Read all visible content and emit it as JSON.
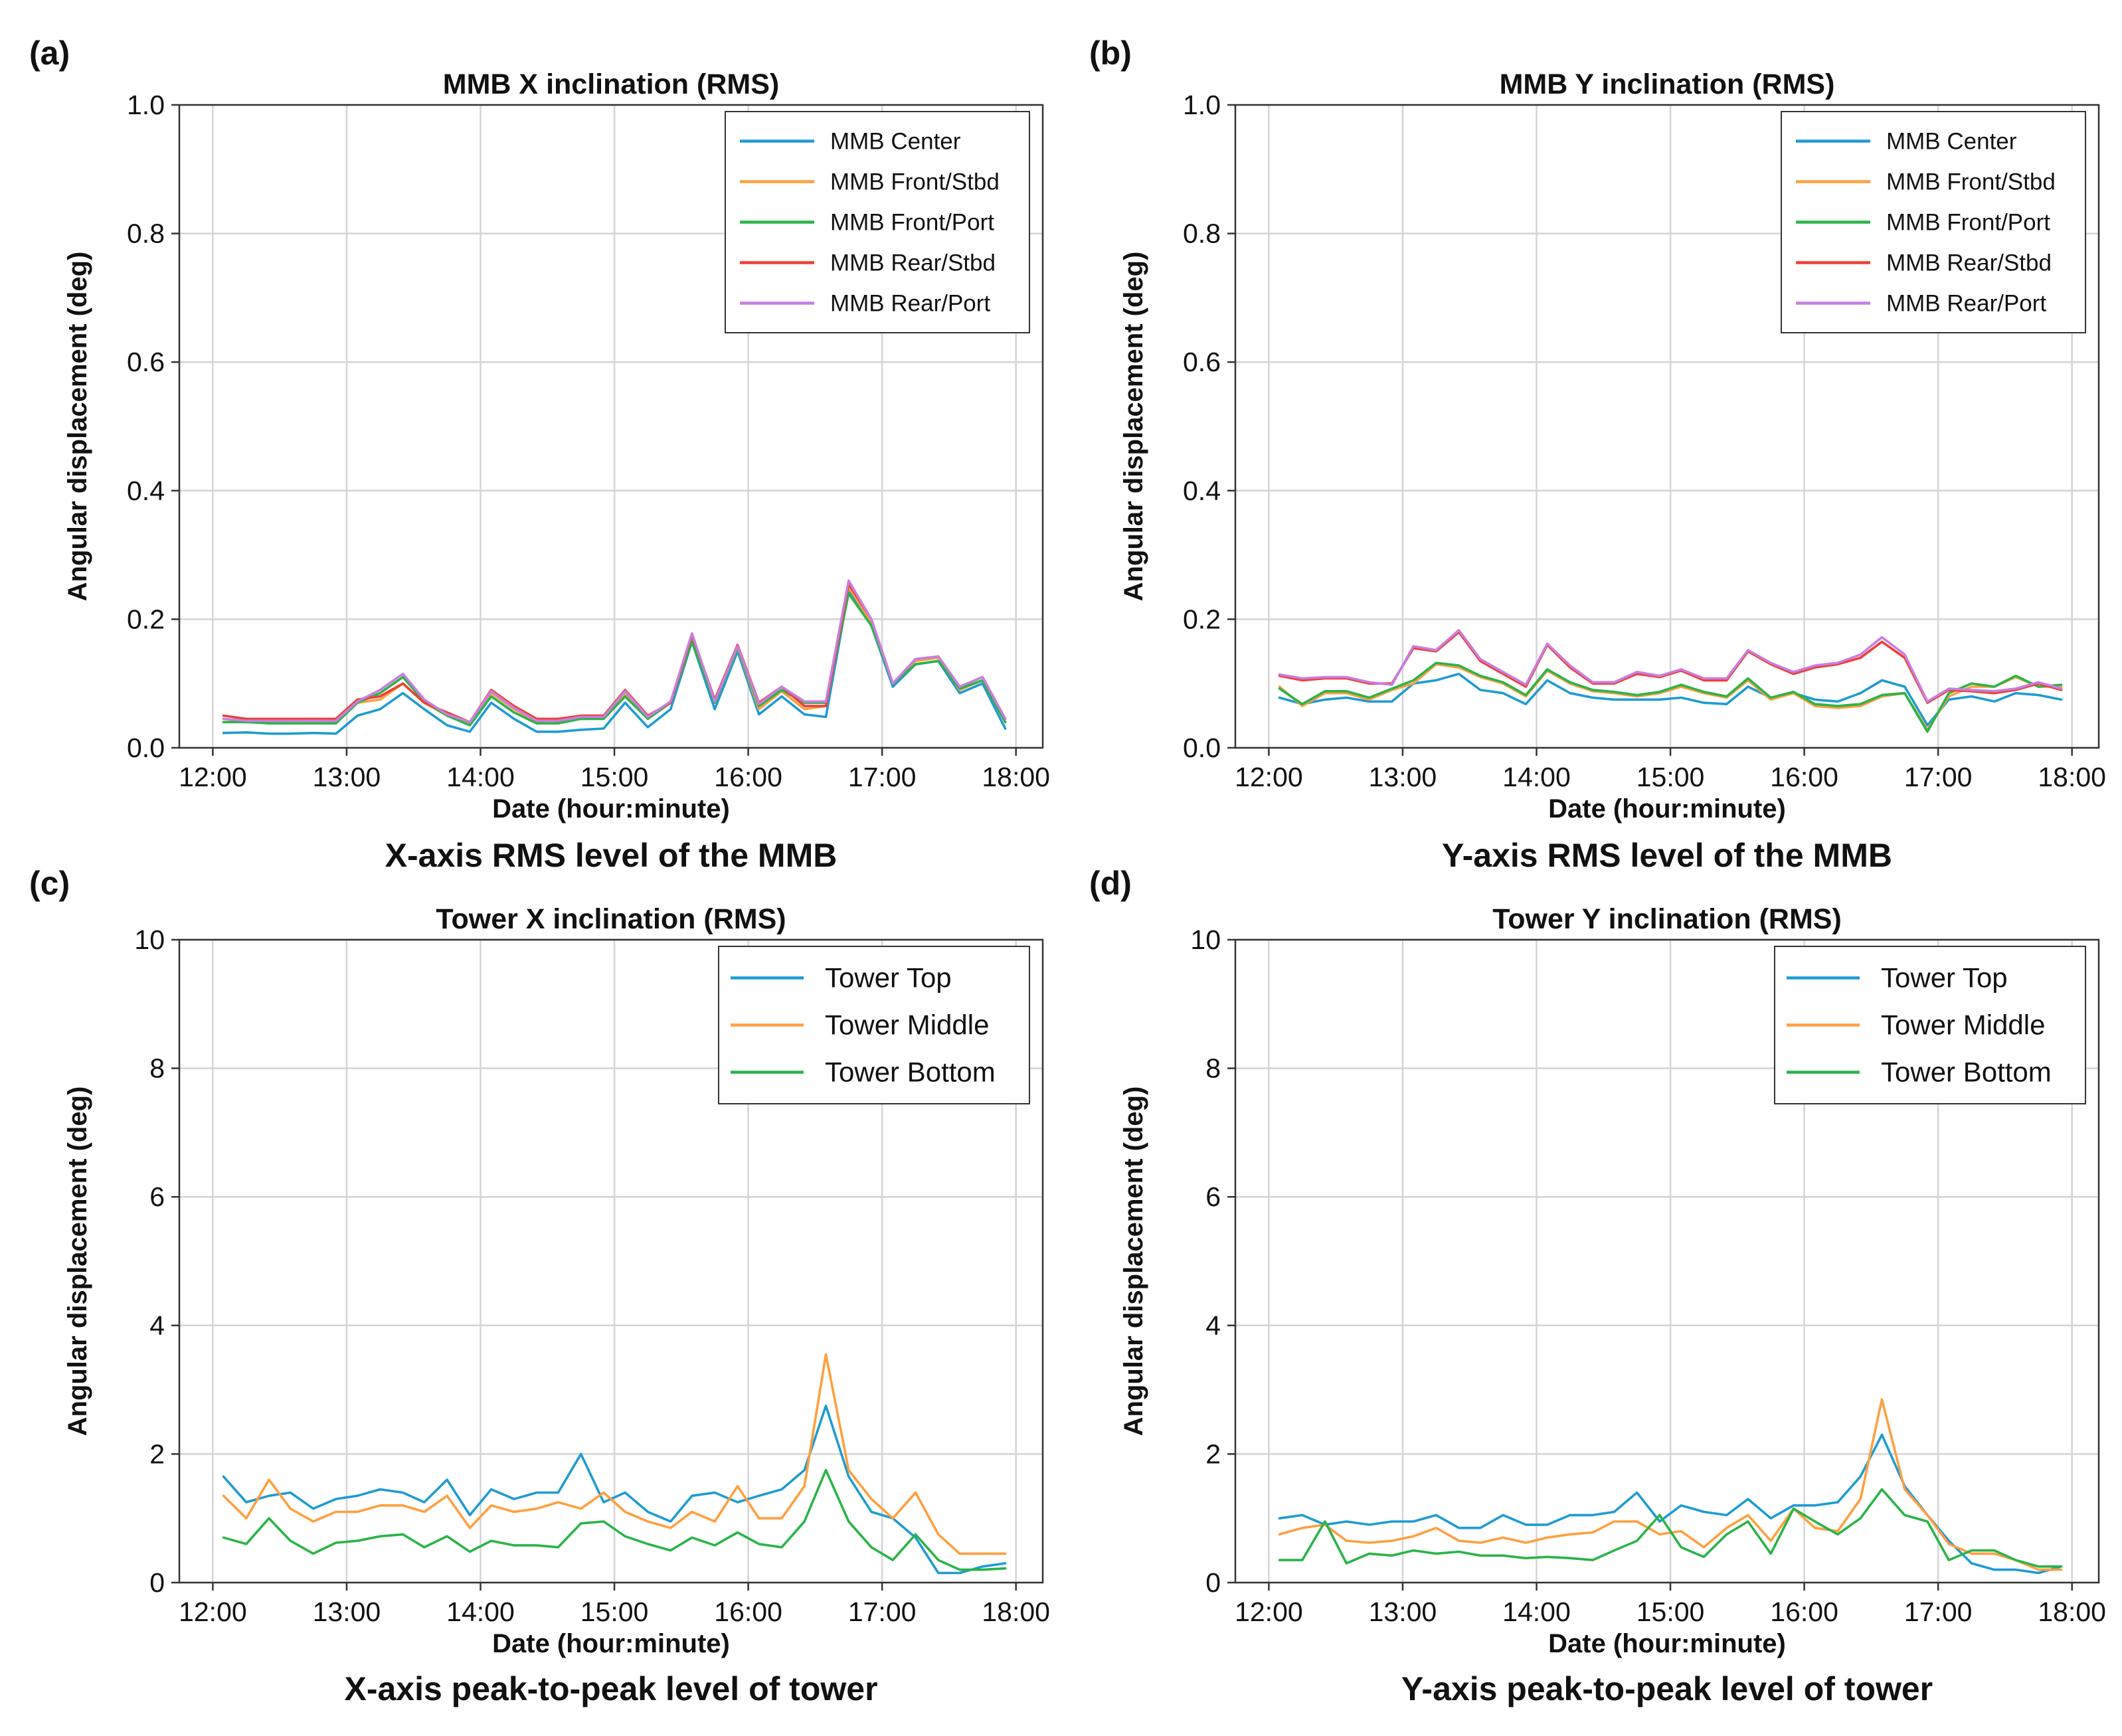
{
  "colors": {
    "blue": "#1f9bd1",
    "orange": "#ff9f40",
    "green": "#2cb34a",
    "red": "#ef3e36",
    "purple": "#c67fe0"
  },
  "chart_data": [
    {
      "id": "a",
      "panel_label": "(a)",
      "type": "line",
      "title": "MMB X inclination (RMS)",
      "caption": "X-axis RMS level of the MMB",
      "xlabel": "Date (hour:minute)",
      "ylabel": "Angular displacement (deg)",
      "xlim": [
        11.75,
        18.2
      ],
      "ylim": [
        0,
        1.0
      ],
      "x_ticks": [
        12,
        13,
        14,
        15,
        16,
        17,
        18
      ],
      "x_tick_labels": [
        "12:00",
        "13:00",
        "14:00",
        "15:00",
        "16:00",
        "17:00",
        "18:00"
      ],
      "y_ticks": [
        0,
        0.2,
        0.4,
        0.6,
        0.8,
        1.0
      ],
      "y_tick_labels": [
        "0.0",
        "0.2",
        "0.4",
        "0.6",
        "0.8",
        "1.0"
      ],
      "grid": true,
      "legend_position": "top-right",
      "x": [
        12.08,
        12.25,
        12.42,
        12.58,
        12.75,
        12.92,
        13.08,
        13.25,
        13.42,
        13.58,
        13.75,
        13.92,
        14.08,
        14.25,
        14.42,
        14.58,
        14.75,
        14.92,
        15.08,
        15.25,
        15.42,
        15.58,
        15.75,
        15.92,
        16.08,
        16.25,
        16.42,
        16.58,
        16.75,
        16.92,
        17.08,
        17.25,
        17.42,
        17.58,
        17.75,
        17.92
      ],
      "series": [
        {
          "name": "MMB Center",
          "color_key": "blue",
          "values": [
            0.023,
            0.024,
            0.022,
            0.022,
            0.023,
            0.022,
            0.05,
            0.06,
            0.085,
            0.06,
            0.035,
            0.025,
            0.07,
            0.045,
            0.025,
            0.025,
            0.028,
            0.03,
            0.07,
            0.032,
            0.06,
            0.165,
            0.06,
            0.15,
            0.052,
            0.08,
            0.052,
            0.048,
            0.245,
            0.19,
            0.095,
            0.13,
            0.135,
            0.085,
            0.1,
            0.03
          ]
        },
        {
          "name": "MMB Front/Stbd",
          "color_key": "orange",
          "values": [
            0.045,
            0.04,
            0.04,
            0.04,
            0.04,
            0.04,
            0.07,
            0.075,
            0.1,
            0.07,
            0.05,
            0.038,
            0.085,
            0.06,
            0.04,
            0.04,
            0.045,
            0.045,
            0.085,
            0.045,
            0.07,
            0.17,
            0.07,
            0.155,
            0.06,
            0.088,
            0.06,
            0.065,
            0.25,
            0.195,
            0.1,
            0.135,
            0.14,
            0.09,
            0.105,
            0.04
          ]
        },
        {
          "name": "MMB Front/Port",
          "color_key": "green",
          "values": [
            0.04,
            0.04,
            0.038,
            0.038,
            0.038,
            0.038,
            0.07,
            0.085,
            0.11,
            0.072,
            0.05,
            0.035,
            0.08,
            0.055,
            0.038,
            0.038,
            0.045,
            0.045,
            0.08,
            0.045,
            0.07,
            0.165,
            0.07,
            0.155,
            0.065,
            0.09,
            0.07,
            0.07,
            0.24,
            0.19,
            0.1,
            0.13,
            0.135,
            0.092,
            0.105,
            0.04
          ]
        },
        {
          "name": "MMB Rear/Stbd",
          "color_key": "red",
          "values": [
            0.05,
            0.045,
            0.045,
            0.045,
            0.045,
            0.045,
            0.075,
            0.08,
            0.1,
            0.07,
            0.055,
            0.04,
            0.09,
            0.065,
            0.045,
            0.045,
            0.05,
            0.05,
            0.09,
            0.05,
            0.07,
            0.175,
            0.075,
            0.16,
            0.07,
            0.095,
            0.065,
            0.065,
            0.255,
            0.2,
            0.1,
            0.138,
            0.142,
            0.095,
            0.11,
            0.045
          ]
        },
        {
          "name": "MMB Rear/Port",
          "color_key": "purple",
          "values": [
            0.045,
            0.042,
            0.042,
            0.042,
            0.042,
            0.042,
            0.072,
            0.09,
            0.115,
            0.075,
            0.052,
            0.04,
            0.088,
            0.062,
            0.042,
            0.042,
            0.048,
            0.048,
            0.088,
            0.048,
            0.072,
            0.178,
            0.072,
            0.158,
            0.068,
            0.095,
            0.072,
            0.072,
            0.26,
            0.2,
            0.1,
            0.138,
            0.142,
            0.095,
            0.11,
            0.045
          ]
        }
      ]
    },
    {
      "id": "b",
      "panel_label": "(b)",
      "type": "line",
      "title": "MMB Y inclination (RMS)",
      "caption": "Y-axis RMS level of the MMB",
      "xlabel": "Date (hour:minute)",
      "ylabel": "Angular displacement (deg)",
      "xlim": [
        11.75,
        18.2
      ],
      "ylim": [
        0,
        1.0
      ],
      "x_ticks": [
        12,
        13,
        14,
        15,
        16,
        17,
        18
      ],
      "x_tick_labels": [
        "12:00",
        "13:00",
        "14:00",
        "15:00",
        "16:00",
        "17:00",
        "18:00"
      ],
      "y_ticks": [
        0,
        0.2,
        0.4,
        0.6,
        0.8,
        1.0
      ],
      "y_tick_labels": [
        "0.0",
        "0.2",
        "0.4",
        "0.6",
        "0.8",
        "1.0"
      ],
      "grid": true,
      "legend_position": "top-right",
      "x": [
        12.08,
        12.25,
        12.42,
        12.58,
        12.75,
        12.92,
        13.08,
        13.25,
        13.42,
        13.58,
        13.75,
        13.92,
        14.08,
        14.25,
        14.42,
        14.58,
        14.75,
        14.92,
        15.08,
        15.25,
        15.42,
        15.58,
        15.75,
        15.92,
        16.08,
        16.25,
        16.42,
        16.58,
        16.75,
        16.92,
        17.08,
        17.25,
        17.42,
        17.58,
        17.75,
        17.92
      ],
      "series": [
        {
          "name": "MMB Center",
          "color_key": "blue",
          "values": [
            0.078,
            0.068,
            0.075,
            0.078,
            0.072,
            0.072,
            0.1,
            0.105,
            0.115,
            0.09,
            0.085,
            0.068,
            0.105,
            0.085,
            0.078,
            0.075,
            0.075,
            0.075,
            0.078,
            0.07,
            0.068,
            0.095,
            0.078,
            0.085,
            0.075,
            0.072,
            0.085,
            0.105,
            0.095,
            0.035,
            0.075,
            0.08,
            0.072,
            0.085,
            0.082,
            0.075
          ]
        },
        {
          "name": "MMB Front/Stbd",
          "color_key": "orange",
          "values": [
            0.095,
            0.065,
            0.085,
            0.085,
            0.075,
            0.09,
            0.1,
            0.13,
            0.125,
            0.11,
            0.1,
            0.08,
            0.12,
            0.1,
            0.088,
            0.085,
            0.08,
            0.085,
            0.095,
            0.085,
            0.078,
            0.105,
            0.075,
            0.085,
            0.065,
            0.062,
            0.065,
            0.08,
            0.085,
            0.028,
            0.08,
            0.095,
            0.095,
            0.11,
            0.095,
            0.095
          ]
        },
        {
          "name": "MMB Front/Port",
          "color_key": "green",
          "values": [
            0.092,
            0.068,
            0.088,
            0.088,
            0.078,
            0.092,
            0.105,
            0.132,
            0.128,
            0.112,
            0.102,
            0.082,
            0.122,
            0.102,
            0.09,
            0.087,
            0.082,
            0.087,
            0.098,
            0.087,
            0.08,
            0.108,
            0.078,
            0.087,
            0.068,
            0.065,
            0.068,
            0.082,
            0.085,
            0.025,
            0.085,
            0.1,
            0.095,
            0.112,
            0.095,
            0.098
          ]
        },
        {
          "name": "MMB Rear/Stbd",
          "color_key": "red",
          "values": [
            0.112,
            0.105,
            0.108,
            0.108,
            0.1,
            0.1,
            0.155,
            0.15,
            0.18,
            0.135,
            0.115,
            0.095,
            0.16,
            0.125,
            0.1,
            0.1,
            0.115,
            0.11,
            0.12,
            0.105,
            0.105,
            0.15,
            0.13,
            0.115,
            0.125,
            0.13,
            0.14,
            0.165,
            0.14,
            0.07,
            0.09,
            0.088,
            0.085,
            0.09,
            0.1,
            0.09
          ]
        },
        {
          "name": "MMB Rear/Port",
          "color_key": "purple",
          "values": [
            0.114,
            0.108,
            0.11,
            0.11,
            0.102,
            0.098,
            0.158,
            0.152,
            0.183,
            0.138,
            0.118,
            0.098,
            0.162,
            0.128,
            0.102,
            0.102,
            0.118,
            0.112,
            0.122,
            0.108,
            0.108,
            0.152,
            0.132,
            0.118,
            0.128,
            0.132,
            0.145,
            0.172,
            0.145,
            0.072,
            0.092,
            0.09,
            0.088,
            0.092,
            0.102,
            0.092
          ]
        }
      ]
    },
    {
      "id": "c",
      "panel_label": "(c)",
      "type": "line",
      "title": "Tower X inclination (RMS)",
      "caption": "X-axis peak-to-peak level of tower",
      "xlabel": "Date (hour:minute)",
      "ylabel": "Angular displacement (deg)",
      "xlim": [
        11.75,
        18.2
      ],
      "ylim": [
        0,
        10
      ],
      "x_ticks": [
        12,
        13,
        14,
        15,
        16,
        17,
        18
      ],
      "x_tick_labels": [
        "12:00",
        "13:00",
        "14:00",
        "15:00",
        "16:00",
        "17:00",
        "18:00"
      ],
      "y_ticks": [
        0,
        2,
        4,
        6,
        8,
        10
      ],
      "y_tick_labels": [
        "0",
        "2",
        "4",
        "6",
        "8",
        "10"
      ],
      "grid": true,
      "legend_position": "top-right",
      "x": [
        12.08,
        12.25,
        12.42,
        12.58,
        12.75,
        12.92,
        13.08,
        13.25,
        13.42,
        13.58,
        13.75,
        13.92,
        14.08,
        14.25,
        14.42,
        14.58,
        14.75,
        14.92,
        15.08,
        15.25,
        15.42,
        15.58,
        15.75,
        15.92,
        16.08,
        16.25,
        16.42,
        16.58,
        16.75,
        16.92,
        17.08,
        17.25,
        17.42,
        17.58,
        17.75,
        17.92
      ],
      "series": [
        {
          "name": "Tower Top",
          "color_key": "blue",
          "values": [
            1.65,
            1.25,
            1.35,
            1.4,
            1.15,
            1.3,
            1.35,
            1.45,
            1.4,
            1.25,
            1.6,
            1.05,
            1.45,
            1.3,
            1.4,
            1.4,
            2.0,
            1.25,
            1.4,
            1.1,
            0.95,
            1.35,
            1.4,
            1.25,
            1.35,
            1.45,
            1.75,
            2.75,
            1.65,
            1.1,
            1.0,
            0.7,
            0.15,
            0.15,
            0.25,
            0.3
          ]
        },
        {
          "name": "Tower Middle",
          "color_key": "orange",
          "values": [
            1.35,
            1.0,
            1.6,
            1.15,
            0.95,
            1.1,
            1.1,
            1.2,
            1.2,
            1.1,
            1.35,
            0.85,
            1.2,
            1.1,
            1.15,
            1.25,
            1.15,
            1.4,
            1.1,
            0.95,
            0.85,
            1.1,
            0.95,
            1.5,
            1.0,
            1.0,
            1.5,
            3.55,
            1.75,
            1.3,
            1.0,
            1.4,
            0.75,
            0.45,
            0.45,
            0.45
          ]
        },
        {
          "name": "Tower Bottom",
          "color_key": "green",
          "values": [
            0.7,
            0.6,
            1.0,
            0.65,
            0.45,
            0.62,
            0.65,
            0.72,
            0.75,
            0.55,
            0.72,
            0.48,
            0.65,
            0.58,
            0.58,
            0.55,
            0.92,
            0.95,
            0.72,
            0.6,
            0.5,
            0.7,
            0.58,
            0.78,
            0.6,
            0.55,
            0.95,
            1.75,
            0.95,
            0.55,
            0.35,
            0.75,
            0.35,
            0.2,
            0.2,
            0.22
          ]
        }
      ]
    },
    {
      "id": "d",
      "panel_label": "(d)",
      "type": "line",
      "title": "Tower Y inclination (RMS)",
      "caption": "Y-axis peak-to-peak level of tower",
      "xlabel": "Date (hour:minute)",
      "ylabel": "Angular displacement (deg)",
      "xlim": [
        11.75,
        18.2
      ],
      "ylim": [
        0,
        10
      ],
      "x_ticks": [
        12,
        13,
        14,
        15,
        16,
        17,
        18
      ],
      "x_tick_labels": [
        "12:00",
        "13:00",
        "14:00",
        "15:00",
        "16:00",
        "17:00",
        "18:00"
      ],
      "y_ticks": [
        0,
        2,
        4,
        6,
        8,
        10
      ],
      "y_tick_labels": [
        "0",
        "2",
        "4",
        "6",
        "8",
        "10"
      ],
      "grid": true,
      "legend_position": "top-right",
      "x": [
        12.08,
        12.25,
        12.42,
        12.58,
        12.75,
        12.92,
        13.08,
        13.25,
        13.42,
        13.58,
        13.75,
        13.92,
        14.08,
        14.25,
        14.42,
        14.58,
        14.75,
        14.92,
        15.08,
        15.25,
        15.42,
        15.58,
        15.75,
        15.92,
        16.08,
        16.25,
        16.42,
        16.58,
        16.75,
        16.92,
        17.08,
        17.25,
        17.42,
        17.58,
        17.75,
        17.92
      ],
      "series": [
        {
          "name": "Tower Top",
          "color_key": "blue",
          "values": [
            1.0,
            1.05,
            0.9,
            0.95,
            0.9,
            0.95,
            0.95,
            1.05,
            0.85,
            0.85,
            1.05,
            0.9,
            0.9,
            1.05,
            1.05,
            1.1,
            1.4,
            0.95,
            1.2,
            1.1,
            1.05,
            1.3,
            1.0,
            1.2,
            1.2,
            1.25,
            1.65,
            2.3,
            1.5,
            1.05,
            0.65,
            0.3,
            0.2,
            0.2,
            0.15,
            0.25
          ]
        },
        {
          "name": "Tower Middle",
          "color_key": "orange",
          "values": [
            0.75,
            0.85,
            0.9,
            0.65,
            0.62,
            0.65,
            0.72,
            0.85,
            0.65,
            0.62,
            0.7,
            0.62,
            0.7,
            0.75,
            0.78,
            0.95,
            0.95,
            0.75,
            0.8,
            0.55,
            0.85,
            1.05,
            0.65,
            1.15,
            0.85,
            0.8,
            1.3,
            2.85,
            1.45,
            1.05,
            0.6,
            0.45,
            0.45,
            0.35,
            0.2,
            0.2
          ]
        },
        {
          "name": "Tower Bottom",
          "color_key": "green",
          "values": [
            0.35,
            0.35,
            0.95,
            0.3,
            0.45,
            0.42,
            0.5,
            0.45,
            0.48,
            0.42,
            0.42,
            0.38,
            0.4,
            0.38,
            0.35,
            0.5,
            0.65,
            1.05,
            0.55,
            0.4,
            0.75,
            0.95,
            0.45,
            1.15,
            0.95,
            0.75,
            1.0,
            1.45,
            1.05,
            0.95,
            0.35,
            0.5,
            0.5,
            0.35,
            0.25,
            0.25
          ]
        }
      ]
    }
  ]
}
